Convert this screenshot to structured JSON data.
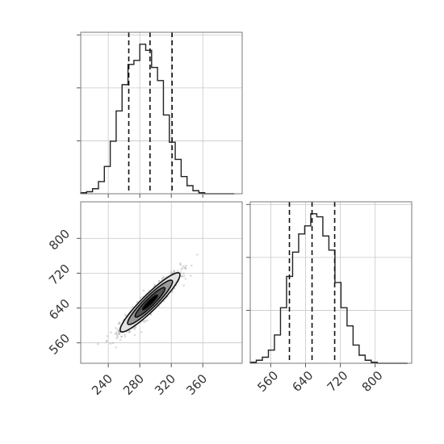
{
  "chart_data": {
    "type": "corner",
    "parameters": [
      "",
      ""
    ],
    "panels": [
      {
        "position": "top-left",
        "type": "histogram",
        "xlim": [
          205,
          410
        ],
        "bins": [
          205,
          212.5,
          220,
          227.5,
          235,
          242.5,
          250,
          257.5,
          265,
          272.5,
          280,
          287.5,
          295,
          302.5,
          310,
          317.5,
          325,
          332.5,
          340,
          347.5,
          355,
          362.5,
          370,
          377.5,
          385,
          392.5,
          400
        ],
        "counts": [
          1,
          2,
          5,
          12,
          27,
          52,
          82,
          108,
          128,
          132,
          148,
          142,
          125,
          112,
          78,
          51,
          34,
          17,
          8,
          3,
          1,
          0,
          0,
          0,
          0,
          0
        ],
        "ytick_count": 3,
        "quantiles": [
          266,
          293,
          321
        ],
        "xticks": [
          240,
          280,
          320,
          360
        ],
        "show_x_tick_labels": false
      },
      {
        "position": "bottom-left",
        "type": "2d-density",
        "xlim": [
          205,
          410
        ],
        "ylim": [
          513,
          884
        ],
        "xticks": [
          240,
          280,
          320,
          360
        ],
        "yticks": [
          560,
          640,
          720,
          800
        ],
        "mean": [
          293,
          653
        ],
        "sigma": [
          19,
          34
        ],
        "correlation": 0.93,
        "contour_levels_sigma": [
          0.5,
          1.0,
          1.5,
          2.0
        ],
        "fill_grays": [
          "#000000",
          "#555555",
          "#9a9a9a",
          "#e2e2e2"
        ]
      },
      {
        "position": "bottom-right",
        "type": "histogram",
        "xlim": [
          513,
          884
        ],
        "bins": [
          513,
          526.9,
          540.8,
          554.7,
          568.6,
          582.5,
          596.4,
          610.3,
          624.2,
          638.1,
          652,
          665.9,
          679.8,
          693.7,
          707.6,
          721.5,
          735.4,
          749.3,
          763.2,
          777.1,
          791,
          804.9,
          818.8,
          832.7,
          846.6,
          860.5,
          874.4
        ],
        "counts": [
          1,
          3,
          6,
          13,
          28,
          55,
          86,
          110,
          128,
          136,
          148,
          145,
          126,
          112,
          80,
          55,
          37,
          18,
          8,
          3,
          1,
          0,
          0,
          0,
          0,
          0
        ],
        "ytick_count": 3,
        "quantiles": [
          603,
          655,
          707
        ],
        "xticks": [
          560,
          640,
          720,
          800
        ]
      }
    ]
  }
}
